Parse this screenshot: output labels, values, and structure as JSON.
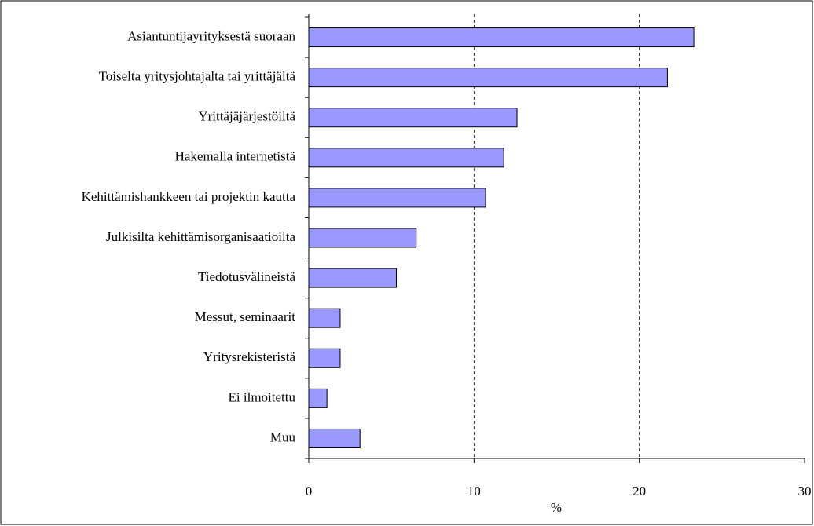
{
  "chart_data": {
    "type": "bar",
    "orientation": "horizontal",
    "categories": [
      "Asiantuntijayrityksestä suoraan",
      "Toiselta yritysjohtajalta tai yrittäjältä",
      "Yrittäjäjärjestöiltä",
      "Hakemalla internetistä",
      "Kehittämishankkeen tai projektin kautta",
      "Julkisilta kehittämisorganisaatioilta",
      "Tiedotusvälineistä",
      "Messut, seminaarit",
      "Yritysrekisteristä",
      "Ei ilmoitettu",
      "Muu"
    ],
    "values": [
      23.3,
      21.7,
      12.6,
      11.8,
      10.7,
      6.5,
      5.3,
      1.9,
      1.9,
      1.1,
      3.1
    ],
    "color": "#9999ff",
    "xlabel": "%",
    "xlim": [
      0,
      30
    ],
    "xticks": [
      0,
      10,
      20,
      30
    ],
    "grid": true
  }
}
